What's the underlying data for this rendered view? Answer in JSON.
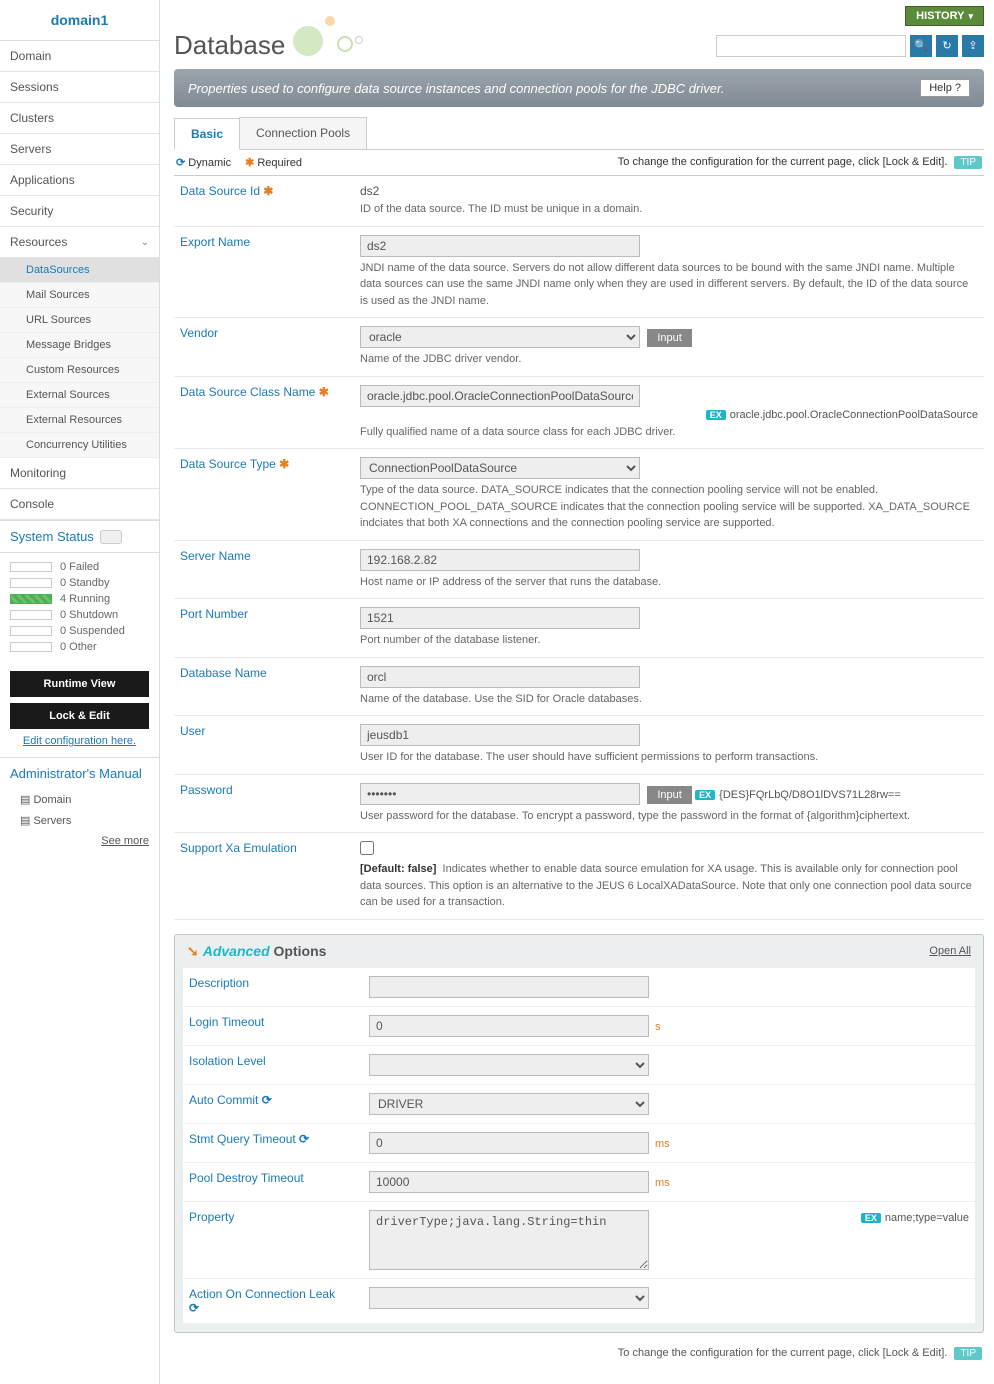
{
  "sidebar": {
    "title": "domain1",
    "nav": [
      "Domain",
      "Sessions",
      "Clusters",
      "Servers",
      "Applications",
      "Security"
    ],
    "resources_label": "Resources",
    "resources_items": [
      "DataSources",
      "Mail Sources",
      "URL Sources",
      "Message Bridges",
      "Custom Resources",
      "External Sources",
      "External Resources",
      "Concurrency Utilities"
    ],
    "active_sub": "DataSources",
    "footer_nav": [
      "Monitoring",
      "Console"
    ],
    "system_status_label": "System Status",
    "statuses": [
      {
        "count": 0,
        "label": "Failed",
        "running": false
      },
      {
        "count": 0,
        "label": "Standby",
        "running": false
      },
      {
        "count": 4,
        "label": "Running",
        "running": true
      },
      {
        "count": 0,
        "label": "Shutdown",
        "running": false
      },
      {
        "count": 0,
        "label": "Suspended",
        "running": false
      },
      {
        "count": 0,
        "label": "Other",
        "running": false
      }
    ],
    "runtime_view_btn": "Runtime View",
    "lock_edit_btn": "Lock & Edit",
    "edit_config_link": "Edit configuration here.",
    "manual_title": "Administrator's Manual",
    "manual_items": [
      "Domain",
      "Servers"
    ],
    "see_more": "See more"
  },
  "topbar": {
    "history": "HISTORY"
  },
  "page": {
    "title": "Database",
    "description": "Properties used to configure data source instances and connection pools for the JDBC driver.",
    "help_label": "Help",
    "tabs": [
      "Basic",
      "Connection Pools"
    ],
    "active_tab": "Basic",
    "dynamic_label": "Dynamic",
    "required_label": "Required",
    "change_hint": "To change the configuration for the current page, click [Lock & Edit].",
    "tip": "TIP"
  },
  "fields": {
    "data_source_id": {
      "label": "Data Source Id",
      "value": "ds2",
      "desc": "ID of the data source. The ID must be unique in a domain."
    },
    "export_name": {
      "label": "Export Name",
      "value": "ds2",
      "desc": "JNDI name of the data source. Servers do not allow different data sources to be bound with the same JNDI name. Multiple data sources can use the same JNDI name only when they are used in different servers. By default, the ID of the data source is used as the JNDI name."
    },
    "vendor": {
      "label": "Vendor",
      "value": "oracle",
      "input_btn": "Input",
      "desc": "Name of the JDBC driver vendor."
    },
    "class_name": {
      "label": "Data Source Class Name",
      "value": "oracle.jdbc.pool.OracleConnectionPoolDataSource",
      "ex": "oracle.jdbc.pool.OracleConnectionPoolDataSource",
      "desc": "Fully qualified name of a data source class for each JDBC driver."
    },
    "ds_type": {
      "label": "Data Source Type",
      "value": "ConnectionPoolDataSource",
      "desc": "Type of the data source. DATA_SOURCE indicates that the connection pooling service will not be enabled. CONNECTION_POOL_DATA_SOURCE indicates that the connection pooling service will be supported. XA_DATA_SOURCE indciates that both XA connections and the connection pooling service are supported."
    },
    "server_name": {
      "label": "Server Name",
      "value": "192.168.2.82",
      "desc": "Host name or IP address of the server that runs the database."
    },
    "port": {
      "label": "Port Number",
      "value": "1521",
      "desc": "Port number of the database listener."
    },
    "db_name": {
      "label": "Database Name",
      "value": "orcl",
      "desc": "Name of the database. Use the SID for Oracle databases."
    },
    "user": {
      "label": "User",
      "value": "jeusdb1",
      "desc": "User ID for the database. The user should have sufficient permissions to perform transactions."
    },
    "password": {
      "label": "Password",
      "value": "•••••••",
      "input_btn": "Input",
      "ex": "{DES}FQrLbQ/D8O1lDVS71L28rw==",
      "desc": "User password for the database. To encrypt a password, type the password in the format of {algorithm}ciphertext."
    },
    "xa_emulation": {
      "label": "Support Xa Emulation",
      "default_tag": "[Default: false]",
      "desc": "Indicates whether to enable data source emulation for XA usage. This is available only for connection pool data sources. This option is an alternative to the JEUS 6 LocalXADataSource. Note that only one connection pool data source can be used for a transaction."
    }
  },
  "advanced": {
    "title_emph": "Advanced",
    "title_rest": " Options",
    "open_all": "Open All",
    "description": {
      "label": "Description",
      "value": ""
    },
    "login_timeout": {
      "label": "Login Timeout",
      "value": "0",
      "unit": "s"
    },
    "isolation": {
      "label": "Isolation Level",
      "value": ""
    },
    "auto_commit": {
      "label": "Auto Commit",
      "value": "DRIVER"
    },
    "stmt_timeout": {
      "label": "Stmt Query Timeout",
      "value": "0",
      "unit": "ms"
    },
    "pool_destroy": {
      "label": "Pool Destroy Timeout",
      "value": "10000",
      "unit": "ms"
    },
    "property": {
      "label": "Property",
      "value": "driverType;java.lang.String=thin",
      "ex": "name;type=value"
    },
    "action_leak": {
      "label": "Action On Connection Leak",
      "value": ""
    }
  },
  "labels": {
    "ex": "EX"
  }
}
